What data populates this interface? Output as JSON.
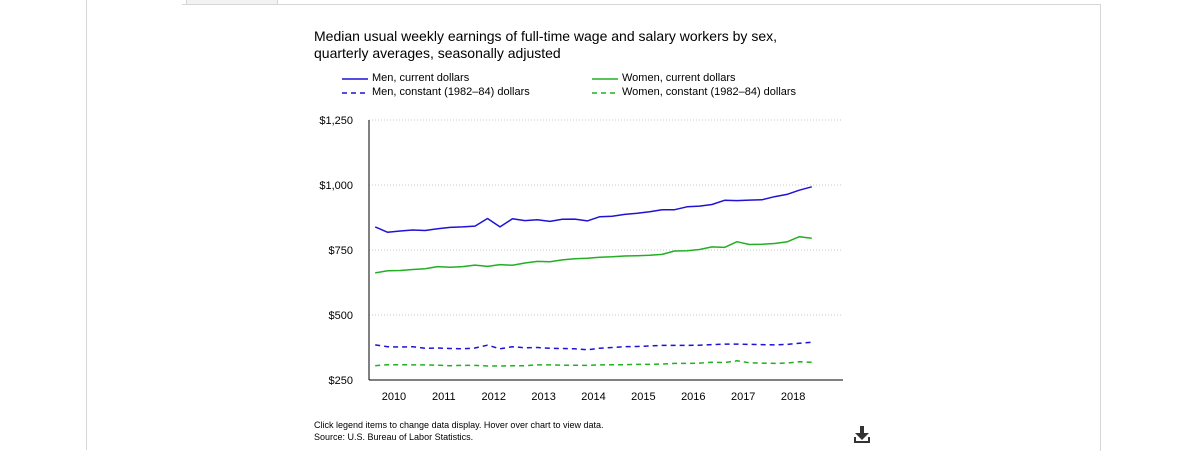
{
  "chart_data": {
    "type": "line",
    "title_line1": "Median usual weekly earnings of full-time wage and salary workers by sex,",
    "title_line2": "quarterly averages, seasonally adjusted",
    "xlabel": "",
    "ylabel": "",
    "ylim": [
      250,
      1250
    ],
    "yticks": [
      250,
      500,
      750,
      1000,
      1250
    ],
    "ytick_labels": [
      "$250",
      "$500",
      "$750",
      "$1,000",
      "$1,250"
    ],
    "xlim": [
      2009.5,
      2019
    ],
    "xtick_labels": [
      "2010",
      "2011",
      "2012",
      "2013",
      "2014",
      "2015",
      "2016",
      "2017",
      "2018"
    ],
    "grid": "horizontal dotted",
    "legend_position": "top",
    "series": [
      {
        "name": "Men, current dollars",
        "color": "#1f12d6",
        "dash": "solid",
        "values": [
          839,
          818,
          823,
          827,
          825,
          832,
          837,
          839,
          842,
          871,
          839,
          870,
          863,
          866,
          860,
          868,
          869,
          862,
          878,
          880,
          887,
          891,
          897,
          905,
          905,
          916,
          919,
          925,
          941,
          940,
          942,
          943,
          955,
          964,
          980,
          993
        ]
      },
      {
        "name": "Women, current dollars",
        "color": "#22b022",
        "dash": "solid",
        "values": [
          662,
          670,
          671,
          675,
          678,
          686,
          684,
          686,
          692,
          687,
          694,
          691,
          700,
          706,
          705,
          712,
          716,
          718,
          722,
          724,
          727,
          728,
          730,
          733,
          746,
          747,
          752,
          762,
          760,
          782,
          771,
          772,
          775,
          781,
          801,
          795
        ]
      },
      {
        "name": "Men, constant (1982–84) dollars",
        "color": "#1f12d6",
        "dash": "dashed",
        "values": [
          385,
          378,
          377,
          378,
          372,
          373,
          371,
          370,
          373,
          384,
          370,
          378,
          374,
          375,
          372,
          371,
          370,
          366,
          372,
          375,
          378,
          379,
          381,
          383,
          383,
          383,
          384,
          386,
          388,
          388,
          387,
          386,
          385,
          387,
          391,
          395
        ]
      },
      {
        "name": "Women, constant (1982–84) dollars",
        "color": "#22b022",
        "dash": "dashed",
        "values": [
          305,
          309,
          309,
          308,
          308,
          307,
          305,
          306,
          306,
          304,
          304,
          305,
          305,
          308,
          308,
          307,
          307,
          306,
          308,
          309,
          309,
          310,
          310,
          311,
          314,
          314,
          315,
          318,
          317,
          324,
          316,
          315,
          314,
          315,
          320,
          318
        ]
      }
    ]
  },
  "footnote_line1": "Click legend items to change data display. Hover over chart to view data.",
  "footnote_line2": "Source: U.S. Bureau of Labor Statistics.",
  "download_icon": "download-icon"
}
